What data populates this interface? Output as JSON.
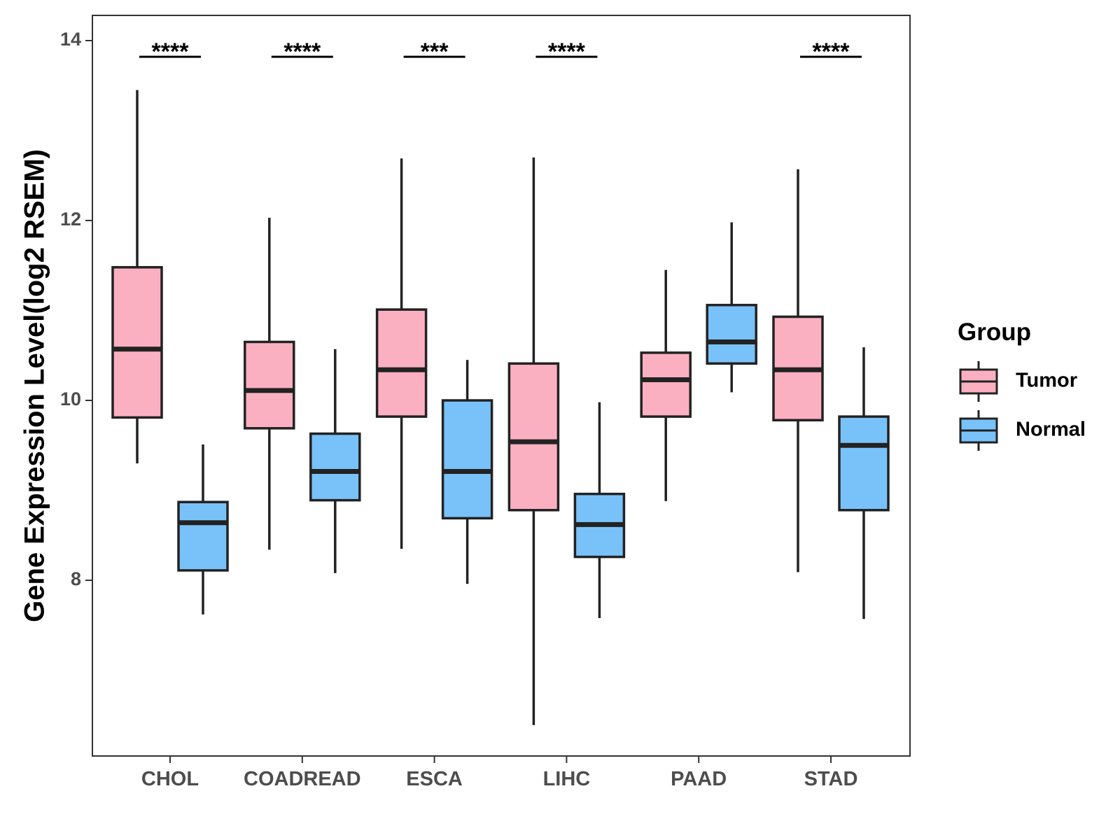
{
  "chart_data": {
    "type": "boxplot",
    "title": "",
    "xlabel": "",
    "ylabel": "Gene Expression Level(log2 RSEM)",
    "ylim": [
      6.0,
      14.2
    ],
    "yticks": [
      8,
      10,
      12,
      14
    ],
    "ytick_labels": [
      "8",
      "10",
      "12",
      "14"
    ],
    "grid": false,
    "categories": [
      "CHOL",
      "COADREAD",
      "ESCA",
      "LIHC",
      "PAAD",
      "STAD"
    ],
    "legend": {
      "title": "Group",
      "position": "right",
      "entries": [
        "Tumor",
        "Normal"
      ]
    },
    "colors": {
      "Tumor": "#FBB0C2",
      "Normal": "#79C2F9",
      "stroke": "#222222",
      "panel_border": "#333333"
    },
    "series": [
      {
        "name": "Tumor",
        "boxes": [
          {
            "whisker_low": 9.3,
            "q1": 9.81,
            "median": 10.57,
            "q3": 11.48,
            "whisker_high": 13.45
          },
          {
            "whisker_low": 8.34,
            "q1": 9.69,
            "median": 10.11,
            "q3": 10.65,
            "whisker_high": 12.03
          },
          {
            "whisker_low": 8.35,
            "q1": 9.82,
            "median": 10.34,
            "q3": 11.01,
            "whisker_high": 12.69
          },
          {
            "whisker_low": 6.39,
            "q1": 8.78,
            "median": 9.54,
            "q3": 10.41,
            "whisker_high": 12.7
          },
          {
            "whisker_low": 8.88,
            "q1": 9.82,
            "median": 10.23,
            "q3": 10.53,
            "whisker_high": 11.45
          },
          {
            "whisker_low": 8.09,
            "q1": 9.78,
            "median": 10.34,
            "q3": 10.93,
            "whisker_high": 12.57
          }
        ]
      },
      {
        "name": "Normal",
        "boxes": [
          {
            "whisker_low": 7.62,
            "q1": 8.11,
            "median": 8.64,
            "q3": 8.87,
            "whisker_high": 9.51
          },
          {
            "whisker_low": 8.08,
            "q1": 8.89,
            "median": 9.21,
            "q3": 9.63,
            "whisker_high": 10.57
          },
          {
            "whisker_low": 7.96,
            "q1": 8.69,
            "median": 9.21,
            "q3": 10.0,
            "whisker_high": 10.45
          },
          {
            "whisker_low": 7.58,
            "q1": 8.26,
            "median": 8.62,
            "q3": 8.96,
            "whisker_high": 9.98
          },
          {
            "whisker_low": 10.09,
            "q1": 10.41,
            "median": 10.65,
            "q3": 11.06,
            "whisker_high": 11.98
          },
          {
            "whisker_low": 7.57,
            "q1": 8.78,
            "median": 9.5,
            "q3": 9.82,
            "whisker_high": 10.59
          }
        ]
      }
    ],
    "significance": [
      {
        "category": "CHOL",
        "label": "****",
        "y": 13.82
      },
      {
        "category": "COADREAD",
        "label": "****",
        "y": 13.82
      },
      {
        "category": "ESCA",
        "label": "***",
        "y": 13.82
      },
      {
        "category": "LIHC",
        "label": "****",
        "y": 13.82
      },
      {
        "category": "STAD",
        "label": "****",
        "y": 13.82
      }
    ]
  }
}
